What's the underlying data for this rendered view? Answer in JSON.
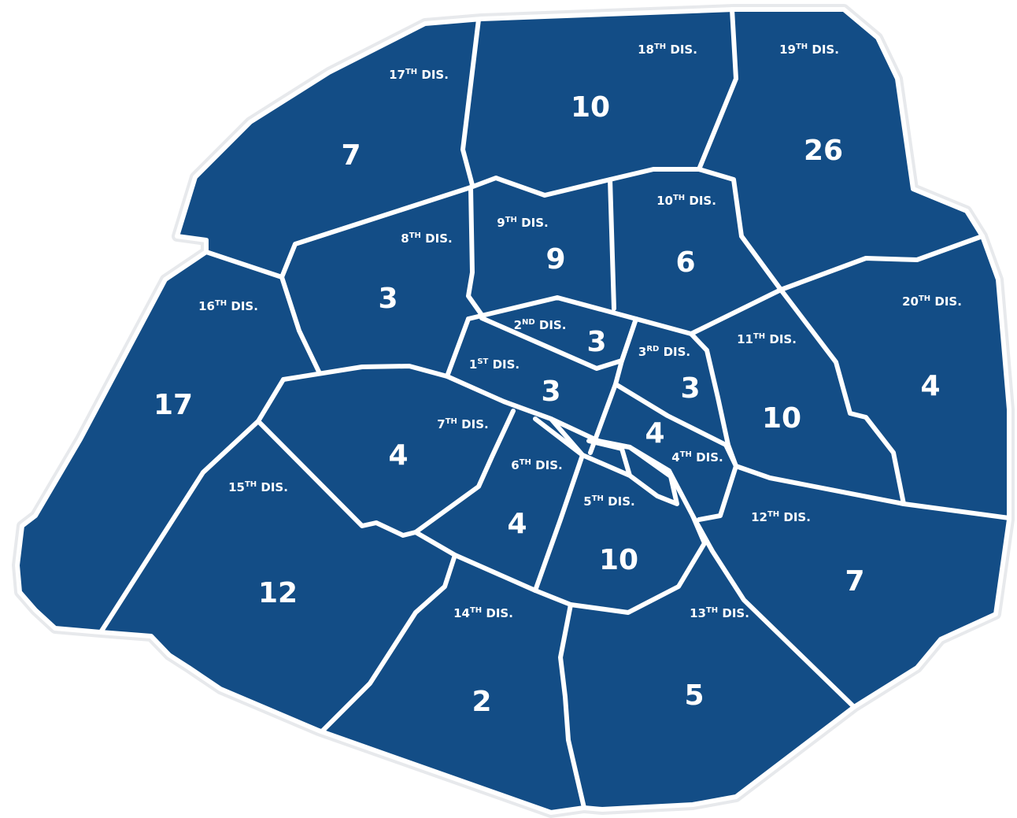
{
  "map": {
    "fill_color": "#134d86",
    "border_color": "#ffffff",
    "districts": [
      {
        "id": "d17",
        "num": "17",
        "ord": "TH",
        "suffix": "DIS.",
        "count": "7"
      },
      {
        "id": "d18",
        "num": "18",
        "ord": "TH",
        "suffix": "DIS.",
        "count": "10"
      },
      {
        "id": "d19",
        "num": "19",
        "ord": "TH",
        "suffix": "DIS.",
        "count": "26"
      },
      {
        "id": "d8",
        "num": "8",
        "ord": "TH",
        "suffix": "DIS.",
        "count": "3"
      },
      {
        "id": "d9",
        "num": "9",
        "ord": "TH",
        "suffix": "DIS.",
        "count": "9"
      },
      {
        "id": "d10",
        "num": "10",
        "ord": "TH",
        "suffix": "DIS.",
        "count": "6"
      },
      {
        "id": "d16",
        "num": "16",
        "ord": "TH",
        "suffix": "DIS.",
        "count": "17"
      },
      {
        "id": "d2",
        "num": "2",
        "ord": "ND",
        "suffix": "DIS.",
        "count": "3"
      },
      {
        "id": "d1",
        "num": "1",
        "ord": "ST",
        "suffix": "DIS.",
        "count": "3"
      },
      {
        "id": "d3",
        "num": "3",
        "ord": "RD",
        "suffix": "DIS.",
        "count": "3"
      },
      {
        "id": "d11",
        "num": "11",
        "ord": "TH",
        "suffix": "DIS.",
        "count": "10"
      },
      {
        "id": "d20",
        "num": "20",
        "ord": "TH",
        "suffix": "DIS.",
        "count": "4"
      },
      {
        "id": "d7",
        "num": "7",
        "ord": "TH",
        "suffix": "DIS.",
        "count": "4"
      },
      {
        "id": "d4",
        "num": "4",
        "ord": "TH",
        "suffix": "DIS.",
        "count": "4"
      },
      {
        "id": "d6",
        "num": "6",
        "ord": "TH",
        "suffix": "DIS.",
        "count": "4"
      },
      {
        "id": "d5",
        "num": "5",
        "ord": "TH",
        "suffix": "DIS.",
        "count": "10"
      },
      {
        "id": "d15",
        "num": "15",
        "ord": "TH",
        "suffix": "DIS.",
        "count": "12"
      },
      {
        "id": "d12",
        "num": "12",
        "ord": "TH",
        "suffix": "DIS.",
        "count": "7"
      },
      {
        "id": "d14",
        "num": "14",
        "ord": "TH",
        "suffix": "DIS.",
        "count": "2"
      },
      {
        "id": "d13",
        "num": "13",
        "ord": "TH",
        "suffix": "DIS.",
        "count": "5"
      }
    ]
  }
}
